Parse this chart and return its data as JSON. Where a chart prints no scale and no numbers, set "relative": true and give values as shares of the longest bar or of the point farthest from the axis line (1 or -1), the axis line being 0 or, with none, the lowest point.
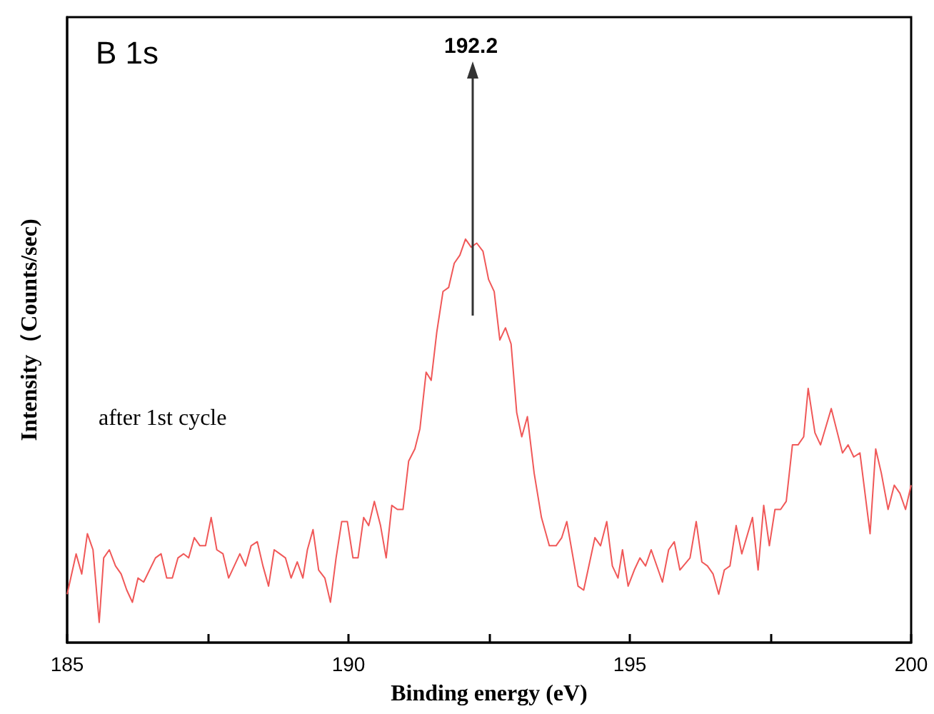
{
  "chart_data": {
    "type": "line",
    "relative": true,
    "xlabel": "Binding energy (eV)",
    "ylabel": "Intensity（Counts/sec)",
    "annotations": [
      "B 1s",
      "after 1st cycle",
      "192.2"
    ],
    "xlim": [
      185,
      200
    ],
    "xticks": [
      185,
      {
        "value": 187.5,
        "label": null
      },
      190,
      {
        "value": 192.5,
        "label": null
      },
      195,
      {
        "value": 197.5,
        "label": null
      },
      200
    ],
    "series": [
      {
        "color": "#f05858",
        "x": [
          185.0,
          185.16,
          185.26,
          185.36,
          185.46,
          185.57,
          185.65,
          185.75,
          185.86,
          185.96,
          186.06,
          186.16,
          186.26,
          186.36,
          186.57,
          186.67,
          186.77,
          186.87,
          186.97,
          187.07,
          187.16,
          187.26,
          187.36,
          187.46,
          187.56,
          187.66,
          187.77,
          187.87,
          187.97,
          188.07,
          188.17,
          188.27,
          188.38,
          188.48,
          188.58,
          188.68,
          188.78,
          188.88,
          188.98,
          189.09,
          189.19,
          189.27,
          189.37,
          189.47,
          189.58,
          189.68,
          189.78,
          189.88,
          189.98,
          190.08,
          190.17,
          190.27,
          190.36,
          190.46,
          190.57,
          190.67,
          190.77,
          190.87,
          190.97,
          191.07,
          191.18,
          191.27,
          191.38,
          191.47,
          191.57,
          191.68,
          191.78,
          191.88,
          191.98,
          192.08,
          192.18,
          192.28,
          192.39,
          192.49,
          192.59,
          192.69,
          192.79,
          192.89,
          192.99,
          193.08,
          193.18,
          193.3,
          193.43,
          193.57,
          193.69,
          193.79,
          193.88,
          194.08,
          194.18,
          194.38,
          194.48,
          194.59,
          194.69,
          194.79,
          194.87,
          194.97,
          195.08,
          195.18,
          195.28,
          195.38,
          195.58,
          195.69,
          195.79,
          195.89,
          196.07,
          196.18,
          196.28,
          196.38,
          196.48,
          196.58,
          196.68,
          196.78,
          196.89,
          196.99,
          197.18,
          197.28,
          197.38,
          197.48,
          197.58,
          197.68,
          197.78,
          197.89,
          197.99,
          198.09,
          198.17,
          198.29,
          198.39,
          198.58,
          198.78,
          198.88,
          198.98,
          199.09,
          199.27,
          199.37,
          199.47,
          199.59,
          199.7,
          199.8,
          199.9,
          200.0
        ],
        "values": [
          0.12,
          0.22,
          0.17,
          0.27,
          0.23,
          0.05,
          0.21,
          0.23,
          0.19,
          0.17,
          0.13,
          0.1,
          0.16,
          0.15,
          0.21,
          0.22,
          0.16,
          0.16,
          0.21,
          0.22,
          0.21,
          0.26,
          0.24,
          0.24,
          0.31,
          0.23,
          0.22,
          0.16,
          0.19,
          0.22,
          0.19,
          0.24,
          0.25,
          0.19,
          0.14,
          0.23,
          0.22,
          0.21,
          0.16,
          0.2,
          0.16,
          0.23,
          0.28,
          0.18,
          0.16,
          0.1,
          0.21,
          0.3,
          0.3,
          0.21,
          0.21,
          0.31,
          0.29,
          0.35,
          0.29,
          0.21,
          0.34,
          0.33,
          0.33,
          0.45,
          0.48,
          0.53,
          0.67,
          0.65,
          0.77,
          0.87,
          0.88,
          0.94,
          0.96,
          1.0,
          0.98,
          0.99,
          0.97,
          0.9,
          0.87,
          0.75,
          0.78,
          0.74,
          0.57,
          0.51,
          0.56,
          0.42,
          0.31,
          0.24,
          0.24,
          0.26,
          0.3,
          0.14,
          0.13,
          0.26,
          0.24,
          0.3,
          0.19,
          0.16,
          0.23,
          0.14,
          0.18,
          0.21,
          0.19,
          0.23,
          0.15,
          0.23,
          0.25,
          0.18,
          0.21,
          0.3,
          0.2,
          0.19,
          0.17,
          0.12,
          0.18,
          0.19,
          0.29,
          0.22,
          0.31,
          0.18,
          0.34,
          0.24,
          0.33,
          0.33,
          0.35,
          0.49,
          0.49,
          0.51,
          0.63,
          0.52,
          0.49,
          0.58,
          0.47,
          0.49,
          0.46,
          0.47,
          0.27,
          0.48,
          0.42,
          0.33,
          0.39,
          0.37,
          0.33,
          0.39
        ]
      }
    ]
  }
}
